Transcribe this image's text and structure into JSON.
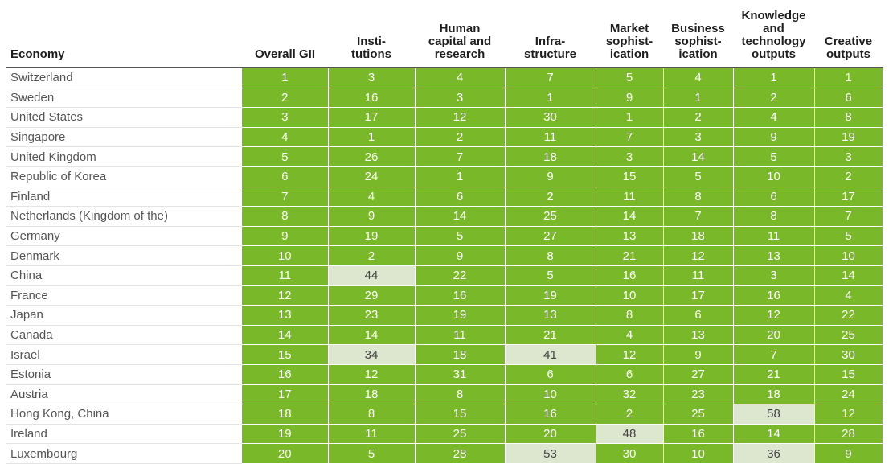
{
  "chart_data": {
    "type": "table",
    "columns": [
      "Economy",
      "Overall GII",
      "Insti-\ntutions",
      "Human\ncapital and\nresearch",
      "Infra-\nstructure",
      "Market\nsophist-\nication",
      "Business\nsophist-\nication",
      "Knowledge\nand\ntechnology\noutputs",
      "Creative\noutputs"
    ],
    "rows": [
      {
        "economy": "Switzerland",
        "values": [
          1,
          3,
          4,
          7,
          5,
          4,
          1,
          1
        ]
      },
      {
        "economy": "Sweden",
        "values": [
          2,
          16,
          3,
          1,
          9,
          1,
          2,
          6
        ]
      },
      {
        "economy": "United States",
        "values": [
          3,
          17,
          12,
          30,
          1,
          2,
          4,
          8
        ]
      },
      {
        "economy": "Singapore",
        "values": [
          4,
          1,
          2,
          11,
          7,
          3,
          9,
          19
        ]
      },
      {
        "economy": "United Kingdom",
        "values": [
          5,
          26,
          7,
          18,
          3,
          14,
          5,
          3
        ]
      },
      {
        "economy": "Republic of Korea",
        "values": [
          6,
          24,
          1,
          9,
          15,
          5,
          10,
          2
        ]
      },
      {
        "economy": "Finland",
        "values": [
          7,
          4,
          6,
          2,
          11,
          8,
          6,
          17
        ]
      },
      {
        "economy": "Netherlands (Kingdom of the)",
        "values": [
          8,
          9,
          14,
          25,
          14,
          7,
          8,
          7
        ]
      },
      {
        "economy": "Germany",
        "values": [
          9,
          19,
          5,
          27,
          13,
          18,
          11,
          5
        ]
      },
      {
        "economy": "Denmark",
        "values": [
          10,
          2,
          9,
          8,
          21,
          12,
          13,
          10
        ]
      },
      {
        "economy": "China",
        "values": [
          11,
          44,
          22,
          5,
          16,
          11,
          3,
          14
        ]
      },
      {
        "economy": "France",
        "values": [
          12,
          29,
          16,
          19,
          10,
          17,
          16,
          4
        ]
      },
      {
        "economy": "Japan",
        "values": [
          13,
          23,
          19,
          13,
          8,
          6,
          12,
          22
        ]
      },
      {
        "economy": "Canada",
        "values": [
          14,
          14,
          11,
          21,
          4,
          13,
          20,
          25
        ]
      },
      {
        "economy": "Israel",
        "values": [
          15,
          34,
          18,
          41,
          12,
          9,
          7,
          30
        ]
      },
      {
        "economy": "Estonia",
        "values": [
          16,
          12,
          31,
          6,
          6,
          27,
          21,
          15
        ]
      },
      {
        "economy": "Austria",
        "values": [
          17,
          18,
          8,
          10,
          32,
          23,
          18,
          24
        ]
      },
      {
        "economy": "Hong Kong, China",
        "values": [
          18,
          8,
          15,
          16,
          2,
          25,
          58,
          12
        ]
      },
      {
        "economy": "Ireland",
        "values": [
          19,
          11,
          25,
          20,
          48,
          16,
          14,
          28
        ]
      },
      {
        "economy": "Luxembourg",
        "values": [
          20,
          5,
          28,
          53,
          30,
          10,
          36,
          9
        ]
      }
    ],
    "highlight_threshold": 33,
    "colors": {
      "high_rank_fill": "#79b829",
      "low_rank_fill": "#dde7cf",
      "high_rank_text": "#ffffff",
      "low_rank_text": "#444444",
      "economy_text": "#555555"
    }
  }
}
